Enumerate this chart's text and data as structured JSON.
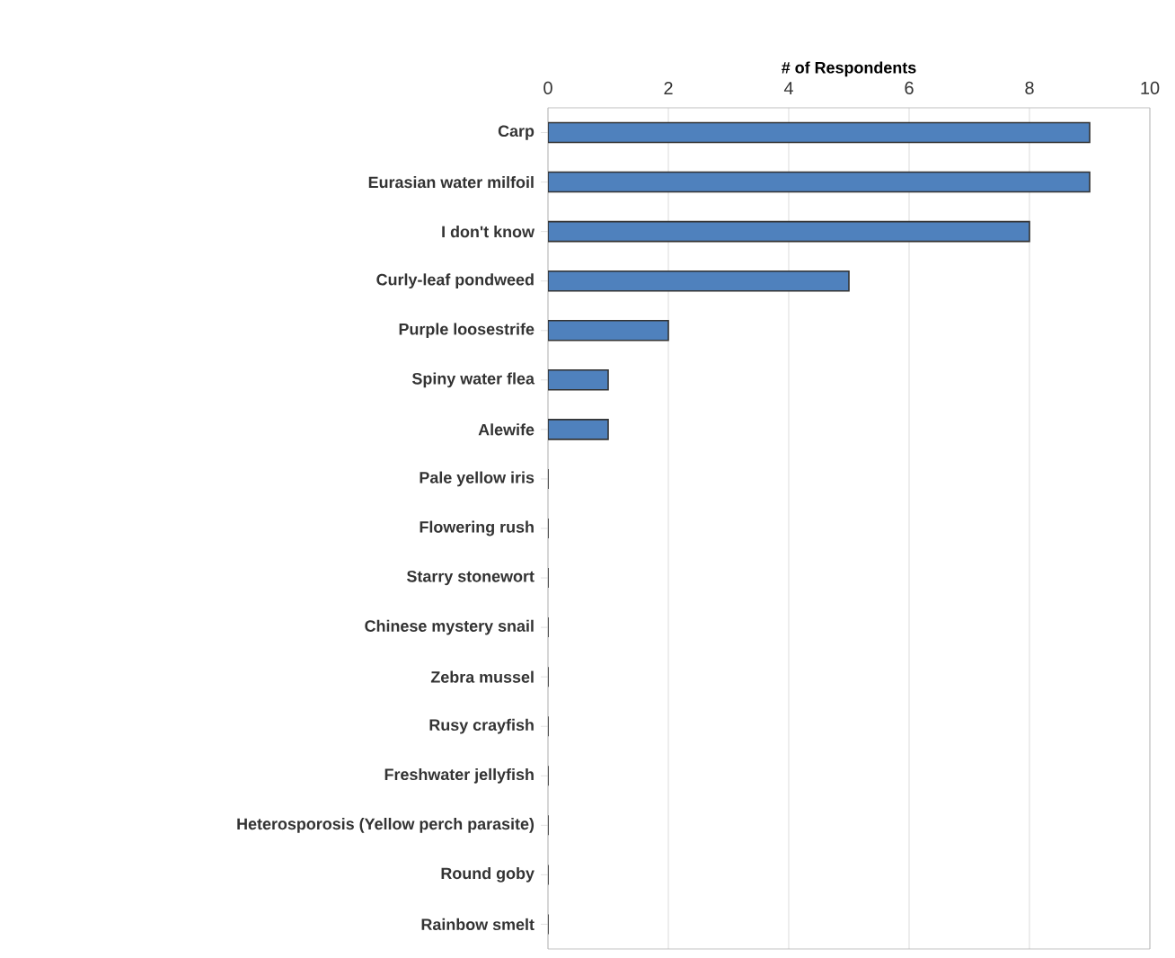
{
  "chart_data": {
    "type": "bar",
    "orientation": "horizontal",
    "xlabel": "# of Respondents",
    "categories": [
      "Carp",
      "Eurasian water milfoil",
      "I don't know",
      "Curly-leaf pondweed",
      "Purple loosestrife",
      "Spiny water flea",
      "Alewife",
      "Pale yellow iris",
      "Flowering rush",
      "Starry stonewort",
      "Chinese mystery snail",
      "Zebra mussel",
      "Rusy crayfish",
      "Freshwater jellyfish",
      "Heterosporosis (Yellow perch parasite)",
      "Round goby",
      "Rainbow smelt"
    ],
    "values": [
      9,
      9,
      8,
      5,
      2,
      1,
      1,
      0,
      0,
      0,
      0,
      0,
      0,
      0,
      0,
      0,
      0
    ],
    "color": "#4f81bd",
    "xlim": [
      0,
      10
    ],
    "xticks": [
      0,
      2,
      4,
      6,
      8,
      10
    ],
    "grid": "x"
  }
}
